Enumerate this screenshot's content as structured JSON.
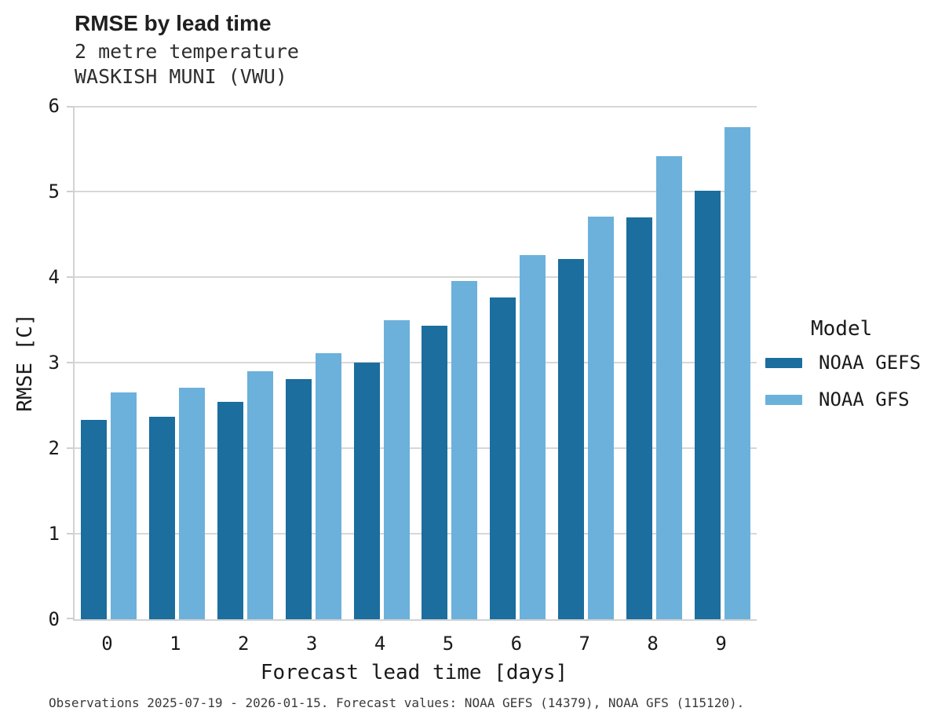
{
  "header": {
    "title": "RMSE by lead time",
    "subtitle_lines": [
      "2 metre temperature",
      "WASKISH MUNI (VWU)"
    ]
  },
  "footer": "Observations 2025-07-19 - 2026-01-15. Forecast values: NOAA GEFS (14379), NOAA GFS (115120).",
  "legend": {
    "title": "Model",
    "entries": [
      {
        "label": "NOAA GEFS",
        "color": "#1b6e9e"
      },
      {
        "label": "NOAA GFS",
        "color": "#6bb1db"
      }
    ]
  },
  "colors": {
    "noaa_gefs": "#1b6e9e",
    "noaa_gfs": "#6bb1db",
    "gridline": "#d7d7d7",
    "axis_text": "#1a1a1a"
  },
  "chart_data": {
    "type": "bar",
    "title": "RMSE by lead time",
    "subtitle": "2 metre temperature WASKISH MUNI (VWU)",
    "xlabel": "Forecast lead time [days]",
    "ylabel": "RMSE [C]",
    "categories": [
      "0",
      "1",
      "2",
      "3",
      "4",
      "5",
      "6",
      "7",
      "8",
      "9"
    ],
    "series": [
      {
        "name": "NOAA GEFS",
        "color": "#1b6e9e",
        "values": [
          2.33,
          2.37,
          2.54,
          2.81,
          3.0,
          3.43,
          3.76,
          4.21,
          4.7,
          5.01
        ]
      },
      {
        "name": "NOAA GFS",
        "color": "#6bb1db",
        "values": [
          2.65,
          2.71,
          2.9,
          3.11,
          3.5,
          3.95,
          4.26,
          4.71,
          5.41,
          5.75
        ]
      }
    ],
    "ylim": [
      0,
      6
    ],
    "yticks": [
      0,
      1,
      2,
      3,
      4,
      5,
      6
    ],
    "grid": true,
    "legend_title": "Model",
    "legend_position": "right"
  }
}
